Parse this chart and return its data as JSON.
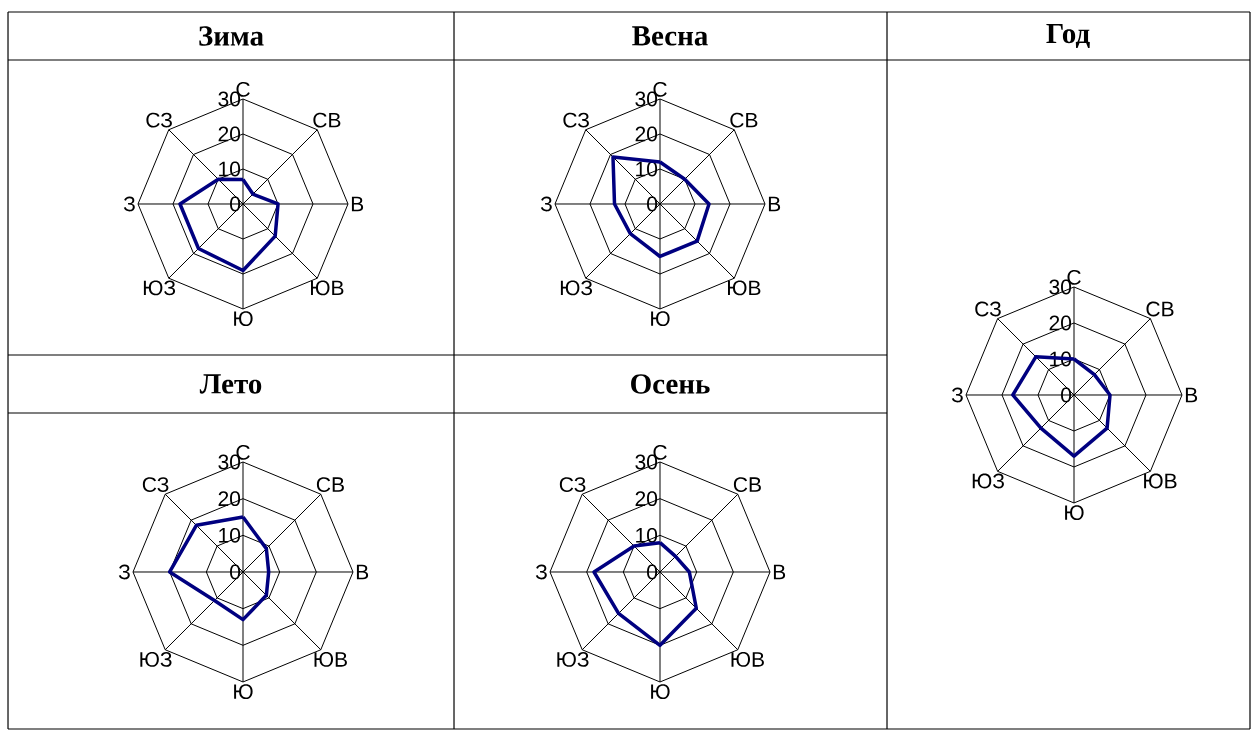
{
  "chart_data": [
    {
      "type": "radar",
      "title": "Зима",
      "categories": [
        "С",
        "СВ",
        "В",
        "ЮВ",
        "Ю",
        "ЮЗ",
        "З",
        "СЗ"
      ],
      "ylim": [
        0,
        30
      ],
      "yticks": [
        0,
        10,
        20,
        30
      ],
      "grid": true,
      "series": [
        {
          "color": "#000080",
          "values": [
            7,
            4,
            10,
            13,
            19,
            18,
            18,
            10
          ]
        }
      ]
    },
    {
      "type": "radar",
      "title": "Весна",
      "categories": [
        "С",
        "СВ",
        "В",
        "ЮВ",
        "Ю",
        "ЮЗ",
        "З",
        "СЗ"
      ],
      "ylim": [
        0,
        30
      ],
      "yticks": [
        0,
        10,
        20,
        30
      ],
      "grid": true,
      "series": [
        {
          "color": "#000080",
          "values": [
            12,
            10,
            14,
            15,
            15,
            12,
            13,
            19
          ]
        }
      ]
    },
    {
      "type": "radar",
      "title": "Лето",
      "categories": [
        "С",
        "СВ",
        "В",
        "ЮВ",
        "Ю",
        "ЮЗ",
        "З",
        "СЗ"
      ],
      "ylim": [
        0,
        30
      ],
      "yticks": [
        0,
        10,
        20,
        30
      ],
      "grid": true,
      "series": [
        {
          "color": "#000080",
          "values": [
            15,
            9,
            7,
            9,
            13,
            11,
            20,
            18
          ]
        }
      ]
    },
    {
      "type": "radar",
      "title": "Осень",
      "categories": [
        "С",
        "СВ",
        "В",
        "ЮВ",
        "Ю",
        "ЮЗ",
        "З",
        "СЗ"
      ],
      "ylim": [
        0,
        30
      ],
      "yticks": [
        0,
        10,
        20,
        30
      ],
      "grid": true,
      "series": [
        {
          "color": "#000080",
          "values": [
            8,
            6,
            8,
            14,
            20,
            16,
            18,
            10
          ]
        }
      ]
    },
    {
      "type": "radar",
      "title": "Год",
      "categories": [
        "С",
        "СВ",
        "В",
        "ЮВ",
        "Ю",
        "ЮЗ",
        "З",
        "СЗ"
      ],
      "ylim": [
        0,
        30
      ],
      "yticks": [
        0,
        10,
        20,
        30
      ],
      "grid": true,
      "series": [
        {
          "color": "#000080",
          "values": [
            10,
            8,
            10,
            13,
            17,
            13,
            17,
            15
          ]
        }
      ]
    }
  ]
}
